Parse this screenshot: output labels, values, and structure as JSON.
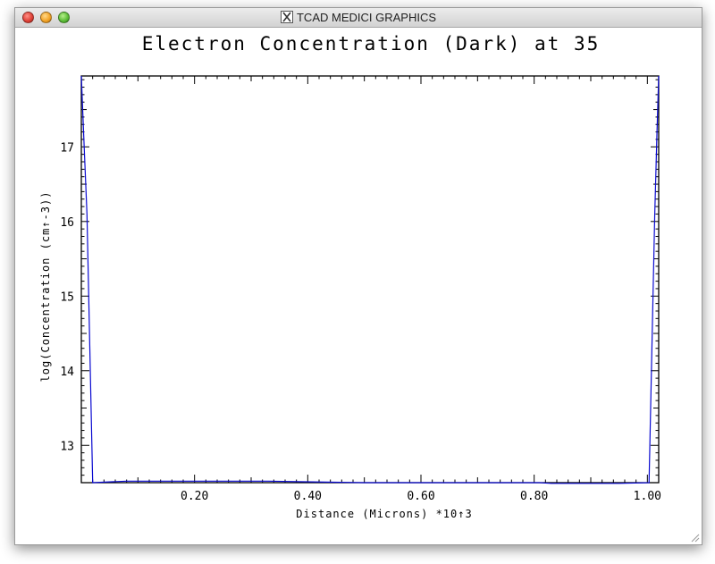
{
  "window": {
    "title": "TCAD MEDICI GRAPHICS",
    "icon": "x11-icon"
  },
  "chart_data": {
    "type": "line",
    "title": "Electron Concentration (Dark) at 35",
    "xlabel": "Distance (Microns) *10↑3",
    "ylabel": "log(Concentration (cm↑-3))",
    "xlim": [
      0.0,
      1.02
    ],
    "ylim": [
      12.5,
      17.95
    ],
    "x_ticks": [
      "0.20",
      "0.40",
      "0.60",
      "0.80",
      "1.00"
    ],
    "x_tick_values": [
      0.2,
      0.4,
      0.6,
      0.8,
      1.0
    ],
    "y_ticks": [
      "13",
      "14",
      "15",
      "16",
      "17"
    ],
    "y_tick_values": [
      13,
      14,
      15,
      16,
      17
    ],
    "grid": false,
    "series": [
      {
        "color": "#0a0ad0",
        "x": [
          0.0,
          0.004,
          0.01,
          0.015,
          0.02,
          0.08,
          0.33,
          0.5,
          0.81,
          0.83,
          0.95,
          1.003,
          1.008,
          1.013,
          1.017,
          1.02
        ],
        "y": [
          17.95,
          17.2,
          16.1,
          14.3,
          12.5,
          12.52,
          12.52,
          12.5,
          12.5,
          12.49,
          12.49,
          12.5,
          14.3,
          16.1,
          17.2,
          17.95
        ]
      }
    ]
  }
}
